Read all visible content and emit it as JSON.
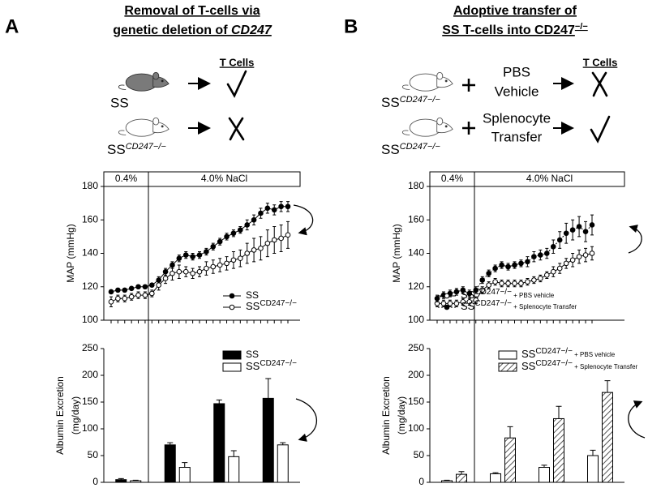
{
  "panels": [
    {
      "letter": "A",
      "title": [
        [
          "Removal of T-cells via"
        ],
        [
          "genetic deletion of ",
          "CD247"
        ]
      ],
      "diagram": {
        "header": "T Cells",
        "rows": [
          [
            "SS"
          ],
          [
            "SS",
            "CD247−/−"
          ]
        ]
      }
    },
    {
      "letter": "B",
      "title": [
        [
          "Adoptive transfer of"
        ],
        [
          "SS T-cells into CD247",
          "−/−"
        ]
      ],
      "diagram": {
        "header": "T Cells",
        "rows": [
          [
            "SS",
            "CD247−/−"
          ],
          [
            "SS",
            "CD247−/−"
          ]
        ],
        "treatments": [
          [
            "PBS",
            "Vehicle"
          ],
          [
            "Splenocyte",
            "Transfer"
          ]
        ]
      }
    }
  ],
  "chart_data": [
    {
      "type": "line",
      "ylabel": "MAP (mmHg)",
      "annotations": [
        "0.4%",
        "4.0% NaCl"
      ],
      "categories": [
        null,
        null,
        null,
        null,
        null,
        null,
        null,
        null,
        null,
        null,
        null,
        null,
        null,
        null,
        null,
        null,
        null,
        null,
        null,
        null,
        null,
        null,
        null,
        null,
        null,
        null,
        null
      ],
      "ylim": [
        100,
        180
      ],
      "yticks": [
        100,
        120,
        140,
        160,
        180
      ],
      "legend": "lower right",
      "series": [
        {
          "name": "SS",
          "color": "#000000",
          "marker": "filled",
          "linestyle": "solid",
          "values": [
            117,
            118,
            118,
            119,
            120,
            120,
            121,
            124,
            129,
            133,
            137,
            139,
            138,
            139,
            141,
            144,
            147,
            150,
            152,
            154,
            157,
            160,
            164,
            167,
            166,
            168,
            168
          ],
          "errors": [
            1,
            1,
            1,
            1,
            1,
            1,
            1,
            2,
            2,
            2,
            2,
            2,
            2,
            2,
            2,
            2,
            2,
            2,
            2,
            2,
            3,
            3,
            3,
            3,
            3,
            3,
            3
          ]
        },
        {
          "name": "SSCD247−/−",
          "color": "#ffffff",
          "marker": "open",
          "linestyle": "solid",
          "values": [
            111,
            113,
            113,
            114,
            115,
            115,
            116,
            121,
            125,
            128,
            129,
            129,
            128,
            129,
            131,
            132,
            133,
            134,
            136,
            137,
            140,
            142,
            143,
            146,
            148,
            149,
            151
          ],
          "errors": [
            3,
            2,
            2,
            2,
            2,
            2,
            2,
            3,
            3,
            4,
            4,
            3,
            3,
            3,
            4,
            4,
            4,
            4,
            5,
            5,
            6,
            7,
            7,
            8,
            8,
            8,
            8
          ]
        }
      ]
    },
    {
      "type": "bar",
      "ylabel": [
        "Albumin Excretion",
        "(mg/day)"
      ],
      "categories": [
        null,
        null,
        null,
        null
      ],
      "ylim": [
        0,
        250
      ],
      "yticks": [
        0,
        50,
        100,
        150,
        200,
        250
      ],
      "legend": "upper right",
      "series": [
        {
          "name": "SS",
          "color": "#000000",
          "hatch": false,
          "values": [
            5,
            70,
            147,
            157
          ],
          "errors": [
            2,
            4,
            7,
            37
          ]
        },
        {
          "name": "SSCD247−/−",
          "color": "#ffffff",
          "hatch": false,
          "values": [
            3,
            28,
            48,
            70
          ],
          "errors": [
            1,
            9,
            11,
            4
          ]
        }
      ]
    },
    {
      "type": "line",
      "ylabel": "MAP (mmHg)",
      "annotations": [
        "0.4%",
        "4.0% NaCl"
      ],
      "categories": [
        null,
        null,
        null,
        null,
        null,
        null,
        null,
        null,
        null,
        null,
        null,
        null,
        null,
        null,
        null,
        null,
        null,
        null,
        null,
        null,
        null,
        null,
        null,
        null,
        null
      ],
      "ylim": [
        100,
        180
      ],
      "yticks": [
        100,
        120,
        140,
        160,
        180
      ],
      "legend": "lower left",
      "series": [
        {
          "name": "SSCD247−/− + PBS vehicle",
          "color": "#ffffff",
          "marker": "open",
          "linestyle": "solid",
          "values": [
            110,
            110,
            110,
            110,
            111,
            111,
            112,
            118,
            121,
            123,
            122,
            122,
            122,
            122,
            123,
            124,
            125,
            127,
            129,
            131,
            134,
            136,
            138,
            139,
            140
          ],
          "errors": [
            2,
            2,
            2,
            2,
            2,
            2,
            2,
            2,
            2,
            2,
            2,
            2,
            2,
            2,
            2,
            2,
            2,
            2,
            3,
            3,
            3,
            4,
            4,
            4,
            4
          ]
        },
        {
          "name": "SSCD247−/− + Splenocyte Transfer",
          "color": "#000000",
          "marker": "filled",
          "linestyle": "dotted",
          "values": [
            113,
            115,
            116,
            117,
            118,
            116,
            118,
            124,
            128,
            131,
            133,
            132,
            133,
            134,
            135,
            138,
            139,
            140,
            144,
            148,
            152,
            154,
            156,
            153,
            157
          ],
          "errors": [
            2,
            2,
            2,
            2,
            2,
            2,
            2,
            2,
            2,
            2,
            2,
            2,
            2,
            2,
            3,
            3,
            3,
            3,
            4,
            5,
            6,
            6,
            6,
            6,
            6
          ]
        }
      ]
    },
    {
      "type": "bar",
      "ylabel": [
        "Albumin Excretion",
        "(mg/day)"
      ],
      "categories": [
        null,
        null,
        null,
        null
      ],
      "ylim": [
        0,
        250
      ],
      "yticks": [
        0,
        50,
        100,
        150,
        200,
        250
      ],
      "legend": "upper center",
      "series": [
        {
          "name": "SSCD247−/− + PBS vehicle",
          "color": "#ffffff",
          "hatch": false,
          "values": [
            3,
            16,
            28,
            50
          ],
          "errors": [
            1,
            2,
            4,
            10
          ]
        },
        {
          "name": "SSCD247−/− + Splenocyte Transfer",
          "color": "#ffffff",
          "hatch": true,
          "values": [
            15,
            83,
            119,
            168
          ],
          "errors": [
            5,
            21,
            23,
            22
          ]
        }
      ]
    }
  ]
}
